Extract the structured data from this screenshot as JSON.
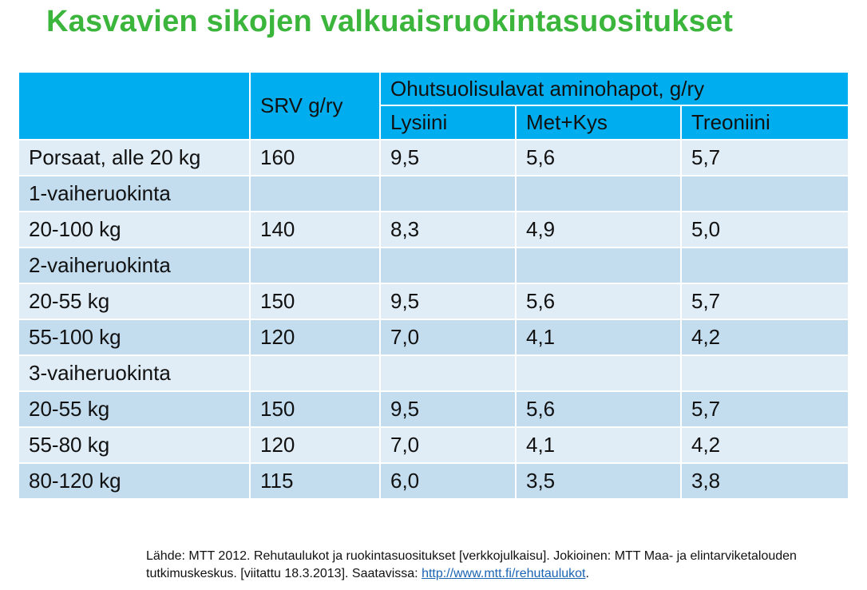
{
  "title": "Kasvavien sikojen valkuaisruokintasuositukset",
  "table": {
    "header_srv": "SRV g/ry",
    "header_group": "Ohutsuolisulavat aminohapot, g/ry",
    "sub_columns": [
      "Lysiini",
      "Met+Kys",
      "Treoniini"
    ],
    "rows": [
      {
        "label": "Porsaat, alle 20 kg",
        "bold": false,
        "srv": "160",
        "lys": "9,5",
        "metkys": "5,6",
        "treo": "5,7"
      },
      {
        "label": "1-vaiheruokinta",
        "bold": true,
        "srv": "",
        "lys": "",
        "metkys": "",
        "treo": ""
      },
      {
        "label": "20-100 kg",
        "bold": false,
        "srv": "140",
        "lys": "8,3",
        "metkys": "4,9",
        "treo": "5,0"
      },
      {
        "label": "2-vaiheruokinta",
        "bold": true,
        "srv": "",
        "lys": "",
        "metkys": "",
        "treo": ""
      },
      {
        "label": "20-55 kg",
        "bold": false,
        "srv": "150",
        "lys": "9,5",
        "metkys": "5,6",
        "treo": "5,7"
      },
      {
        "label": "55-100 kg",
        "bold": false,
        "srv": "120",
        "lys": "7,0",
        "metkys": "4,1",
        "treo": "4,2"
      },
      {
        "label": "3-vaiheruokinta",
        "bold": true,
        "srv": "",
        "lys": "",
        "metkys": "",
        "treo": ""
      },
      {
        "label": "20-55 kg",
        "bold": false,
        "srv": "150",
        "lys": "9,5",
        "metkys": "5,6",
        "treo": "5,7"
      },
      {
        "label": "55-80 kg",
        "bold": false,
        "srv": "120",
        "lys": "7,0",
        "metkys": "4,1",
        "treo": "4,2"
      },
      {
        "label": "80-120 kg",
        "bold": false,
        "srv": "115",
        "lys": "6,0",
        "metkys": "3,5",
        "treo": "3,8"
      }
    ]
  },
  "source": {
    "text": "Lähde: MTT 2012. Rehutaulukot ja ruokintasuositukset [verkkojulkaisu]. Jokioinen: MTT Maa- ja elintarviketalouden tutkimuskeskus. [viitattu 18.3.2013]. Saatavissa: ",
    "link": "http://www.mtt.fi/rehutaulukot",
    "end": "."
  },
  "colors": {
    "title": "#3cb53c",
    "header": "#00aeef",
    "row_light": "#e0edf6",
    "row_dark": "#c3dcee",
    "link": "#1a64b3"
  }
}
